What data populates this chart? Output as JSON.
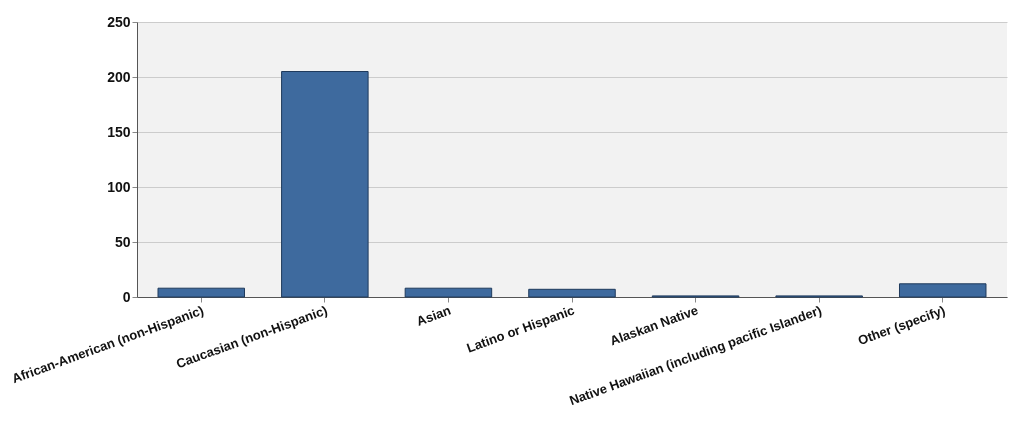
{
  "chart_data": {
    "type": "bar",
    "categories": [
      "African-American (non-Hispanic)",
      "Caucasian (non-Hispanic)",
      "Asian",
      "Latino or Hispanic",
      "Alaskan Native",
      "Native Hawaiian (including pacific Islander)",
      "Other (specify)"
    ],
    "values": [
      8,
      205,
      8,
      7,
      1,
      1,
      12
    ],
    "color": "#3e6a9e",
    "ylim": [
      0,
      250
    ],
    "yticks": [
      0,
      50,
      100,
      150,
      200,
      250
    ],
    "grid": "y"
  }
}
